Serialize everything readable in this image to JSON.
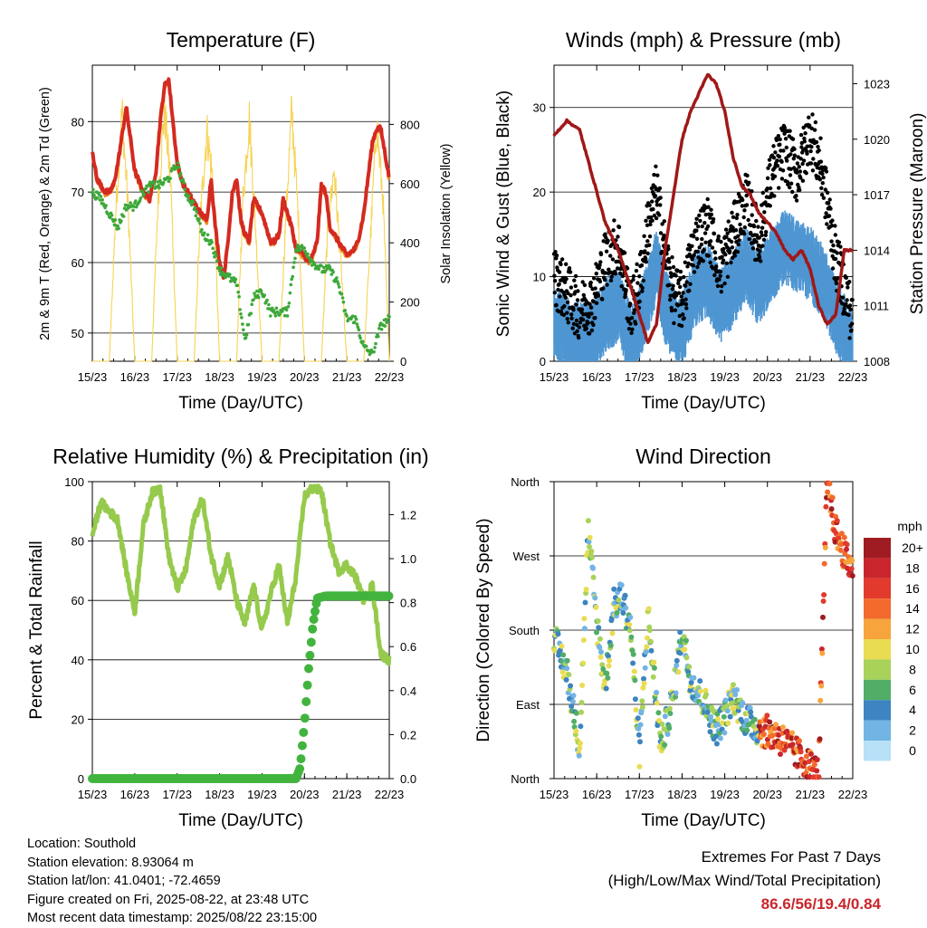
{
  "chart_data": [
    {
      "type": "line",
      "title": "Temperature (F)",
      "xlabel": "Time (Day/UTC)",
      "ylabel": "2m & 9m T (Red, Orange) & 2m Td (Green)",
      "y2label": "Solar Insolation (Yellow)",
      "x_ticks": [
        "15/23",
        "16/23",
        "17/23",
        "18/23",
        "19/23",
        "20/23",
        "21/23",
        "22/23"
      ],
      "ylim": [
        46,
        88
      ],
      "y_ticks": [
        50,
        60,
        70,
        80
      ],
      "y2lim": [
        0,
        1000
      ],
      "y2_ticks": [
        0,
        200,
        400,
        600,
        800
      ],
      "grid": true,
      "colors": {
        "temp_2m": "#d42a20",
        "temp_9m": "#f08a24",
        "dewpoint": "#3da83a",
        "solar": "#f7d354"
      },
      "series": [
        {
          "key": "temp_2m",
          "x": [
            0,
            0.1,
            0.2,
            0.3,
            0.4,
            0.5,
            0.6,
            0.7,
            0.8,
            1.0,
            1.2,
            1.35,
            1.5,
            1.6,
            1.7,
            1.8,
            2.0,
            2.15,
            2.25,
            2.35,
            2.45,
            2.55,
            2.7,
            2.8,
            2.9,
            3.0,
            3.1,
            3.2,
            3.3,
            3.4,
            3.5,
            3.6,
            3.7,
            3.8,
            4.0,
            4.2,
            4.3,
            4.4,
            4.5,
            4.6,
            4.7,
            4.8,
            5.0,
            5.1,
            5.2,
            5.3,
            5.4,
            5.5,
            5.6,
            5.7,
            5.8,
            6.0,
            6.2,
            6.3,
            6.4,
            6.5,
            6.6,
            6.7,
            6.8,
            7.0
          ],
          "y": [
            76,
            72,
            71,
            70,
            70,
            71,
            74,
            78,
            82,
            73,
            70,
            69,
            73,
            80,
            85,
            86,
            74,
            71,
            70,
            69,
            68,
            67,
            66,
            72,
            65,
            60,
            58,
            63,
            70,
            72,
            66,
            64,
            63,
            69,
            67,
            63,
            63,
            64,
            69,
            67,
            65,
            62,
            61,
            60,
            61,
            63,
            71,
            70,
            65,
            64,
            63,
            61,
            62,
            64,
            67,
            72,
            77,
            79,
            79,
            72
          ]
        },
        {
          "key": "temp_9m",
          "x": [
            0,
            0.5,
            1.0,
            1.5,
            2.0,
            2.5,
            3.0,
            3.5,
            4.0,
            4.5,
            5.0,
            5.5,
            6.0,
            6.5,
            7.0
          ],
          "y": [
            75,
            70,
            72,
            73,
            75,
            67,
            61,
            66,
            64,
            68,
            61,
            70,
            62,
            71,
            73
          ]
        },
        {
          "key": "dewpoint",
          "x": [
            0,
            0.2,
            0.4,
            0.6,
            0.8,
            1.0,
            1.2,
            1.4,
            1.6,
            1.8,
            2.0,
            2.2,
            2.4,
            2.6,
            2.8,
            3.0,
            3.2,
            3.4,
            3.6,
            3.8,
            4.0,
            4.2,
            4.4,
            4.6,
            4.8,
            5.0,
            5.2,
            5.4,
            5.6,
            5.8,
            6.0,
            6.2,
            6.4,
            6.6,
            6.8,
            7.0
          ],
          "y": [
            70,
            69,
            67,
            65,
            68,
            68,
            70,
            71,
            71,
            72,
            74,
            70,
            68,
            64,
            63,
            59,
            58,
            57,
            49,
            55,
            56,
            53,
            53,
            53,
            62,
            62,
            60,
            59,
            59,
            57,
            52,
            52,
            48,
            47,
            51,
            52
          ]
        },
        {
          "key": "solar",
          "x": [
            0,
            0.4,
            0.55,
            0.7,
            0.85,
            1.0,
            1.4,
            1.55,
            1.7,
            1.85,
            2.0,
            2.4,
            2.55,
            2.7,
            2.85,
            3.0,
            3.4,
            3.55,
            3.7,
            3.85,
            4.0,
            4.4,
            4.55,
            4.7,
            4.85,
            5.0,
            5.4,
            5.55,
            5.7,
            5.85,
            6.0,
            6.4,
            6.55,
            6.7,
            6.85,
            7.0
          ],
          "y": [
            0,
            0,
            500,
            850,
            500,
            0,
            0,
            550,
            850,
            600,
            0,
            0,
            500,
            780,
            600,
            0,
            0,
            550,
            820,
            450,
            0,
            0,
            450,
            850,
            500,
            0,
            0,
            450,
            650,
            350,
            0,
            0,
            400,
            800,
            550,
            0
          ]
        }
      ]
    },
    {
      "type": "scatter",
      "title": "Winds (mph) & Pressure (mb)",
      "xlabel": "Time (Day/UTC)",
      "ylabel": "Sonic Wind & Gust (Blue, Black)",
      "y2label": "Station Pressure (Maroon)",
      "x_ticks": [
        "15/23",
        "16/23",
        "17/23",
        "18/23",
        "19/23",
        "20/23",
        "21/23",
        "22/23"
      ],
      "ylim": [
        0,
        35
      ],
      "y_ticks": [
        0,
        10,
        20,
        30
      ],
      "y2lim": [
        1008,
        1024
      ],
      "y2_ticks": [
        1008,
        1011,
        1014,
        1017,
        1020,
        1023
      ],
      "grid": true,
      "colors": {
        "wind": "#4f96d2",
        "gust": "#000000",
        "pressure": "#a01818"
      },
      "series": [
        {
          "key": "wind",
          "x": [
            0,
            0.3,
            0.6,
            0.9,
            1.2,
            1.5,
            1.8,
            2.0,
            2.2,
            2.4,
            2.6,
            2.8,
            3.0,
            3.3,
            3.6,
            3.9,
            4.2,
            4.5,
            4.8,
            5.1,
            5.4,
            5.7,
            6.0,
            6.3,
            6.6,
            6.9,
            7.0
          ],
          "y": [
            6,
            5,
            4,
            4,
            7,
            8,
            4,
            6,
            9,
            13,
            8,
            6,
            5,
            10,
            11,
            8,
            10,
            13,
            10,
            13,
            15,
            14,
            13,
            11,
            7,
            4,
            3
          ]
        },
        {
          "key": "gust",
          "x": [
            0,
            0.3,
            0.6,
            0.9,
            1.2,
            1.5,
            1.8,
            2.0,
            2.2,
            2.4,
            2.6,
            2.8,
            3.0,
            3.3,
            3.6,
            3.9,
            4.2,
            4.5,
            4.8,
            5.1,
            5.4,
            5.7,
            6.0,
            6.3,
            6.6,
            6.9,
            7.0
          ],
          "y": [
            10,
            8,
            6,
            7,
            12,
            14,
            6,
            9,
            16,
            20,
            13,
            8,
            7,
            14,
            16,
            11,
            15,
            19,
            14,
            22,
            25,
            22,
            27,
            22,
            12,
            7,
            4
          ]
        },
        {
          "key": "pressure",
          "x": [
            0,
            0.3,
            0.6,
            0.9,
            1.2,
            1.5,
            1.8,
            2.0,
            2.2,
            2.4,
            2.6,
            2.8,
            3.0,
            3.2,
            3.4,
            3.6,
            3.8,
            4.0,
            4.2,
            4.4,
            4.6,
            4.8,
            5.0,
            5.2,
            5.4,
            5.6,
            5.8,
            6.0,
            6.2,
            6.4,
            6.6,
            6.8,
            7.0
          ],
          "y": [
            1020.2,
            1021,
            1020.5,
            1018,
            1015.5,
            1014,
            1012,
            1010.5,
            1009,
            1010,
            1014,
            1017,
            1020,
            1021.5,
            1022.5,
            1023.5,
            1023,
            1021.5,
            1019,
            1017.5,
            1017,
            1016,
            1015.5,
            1015,
            1014,
            1013.5,
            1014,
            1013,
            1011,
            1010,
            1010.5,
            1014,
            1014
          ]
        }
      ]
    },
    {
      "type": "line",
      "title": "Relative Humidity (%) & Precipitation (in)",
      "xlabel": "Time (Day/UTC)",
      "ylabel": "Percent & Total Rainfall",
      "x_ticks": [
        "15/23",
        "16/23",
        "17/23",
        "18/23",
        "19/23",
        "20/23",
        "21/23",
        "22/23"
      ],
      "ylim": [
        0,
        100
      ],
      "y_ticks": [
        0,
        20,
        40,
        60,
        80,
        100
      ],
      "y2lim": [
        0,
        1.35
      ],
      "y2_ticks": [
        "0.0",
        "0.2",
        "0.4",
        "0.6",
        "0.8",
        "1.0",
        "1.2"
      ],
      "grid": true,
      "colors": {
        "rh": "#96ca4c",
        "precip": "#42b43e"
      },
      "series": [
        {
          "key": "rh",
          "x": [
            0,
            0.2,
            0.4,
            0.6,
            0.8,
            1.0,
            1.2,
            1.4,
            1.6,
            1.8,
            2.0,
            2.2,
            2.4,
            2.6,
            2.8,
            3.0,
            3.2,
            3.4,
            3.6,
            3.8,
            4.0,
            4.2,
            4.4,
            4.6,
            4.8,
            5.0,
            5.2,
            5.4,
            5.6,
            5.8,
            6.0,
            6.2,
            6.4,
            6.6,
            6.8,
            7.0
          ],
          "y": [
            82,
            93,
            90,
            87,
            70,
            56,
            85,
            96,
            98,
            75,
            64,
            70,
            88,
            94,
            75,
            65,
            75,
            60,
            52,
            65,
            50,
            62,
            72,
            52,
            68,
            95,
            98,
            97,
            80,
            70,
            72,
            68,
            60,
            65,
            42,
            40
          ]
        },
        {
          "key": "precip",
          "x": [
            0,
            4.8,
            4.9,
            5.0,
            5.1,
            5.2,
            5.3,
            5.5,
            7.0
          ],
          "y": [
            0,
            0,
            0.05,
            0.25,
            0.5,
            0.7,
            0.82,
            0.83,
            0.83
          ]
        }
      ]
    },
    {
      "type": "scatter",
      "title": "Wind Direction",
      "xlabel": "Time (Day/UTC)",
      "ylabel": "Direction (Colored By Speed)",
      "x_ticks": [
        "15/23",
        "16/23",
        "17/23",
        "18/23",
        "19/23",
        "20/23",
        "21/23",
        "22/23"
      ],
      "y_tick_labels": [
        "North",
        "East",
        "South",
        "West",
        "North"
      ],
      "ylim": [
        0,
        360
      ],
      "grid": true,
      "legend_title": "mph",
      "legend_labels": [
        "20+",
        "18",
        "16",
        "14",
        "12",
        "10",
        "8",
        "6",
        "4",
        "2",
        "0"
      ],
      "legend_colors": [
        "#9e1c22",
        "#c8262c",
        "#e23a2c",
        "#f26a2c",
        "#f7a43c",
        "#e9dc52",
        "#a8d25a",
        "#52ae66",
        "#3d84c0",
        "#72b4e4",
        "#b8e0f6"
      ],
      "series": [
        {
          "key": "direction",
          "x": [
            0,
            0.3,
            0.6,
            0.8,
            1.0,
            1.2,
            1.4,
            1.6,
            1.8,
            2.0,
            2.2,
            2.5,
            2.8,
            3.0,
            3.2,
            3.5,
            3.8,
            4.0,
            4.2,
            4.5,
            4.8,
            5.1,
            5.4,
            5.7,
            6.0,
            6.2,
            6.4,
            6.6,
            6.9
          ],
          "y": [
            170,
            130,
            40,
            300,
            190,
            110,
            210,
            220,
            180,
            30,
            200,
            40,
            100,
            180,
            120,
            95,
            60,
            75,
            100,
            70,
            60,
            55,
            45,
            30,
            15,
            5,
            360,
            300,
            260
          ]
        }
      ]
    }
  ],
  "info": {
    "location": "Location: Southold",
    "elevation": "Station elevation: 8.93064 m",
    "latlon": "Station lat/lon: 41.0401; -72.4659",
    "created": "Figure created on Fri, 2025-08-22, at 23:48 UTC",
    "recent": "Most recent data timestamp: 2025/08/22 23:15:00"
  },
  "extremes": {
    "line1": "Extremes For Past 7 Days",
    "line2": "(High/Low/Max Wind/Total Precipitation)",
    "values": "86.6/56/19.4/0.84"
  }
}
